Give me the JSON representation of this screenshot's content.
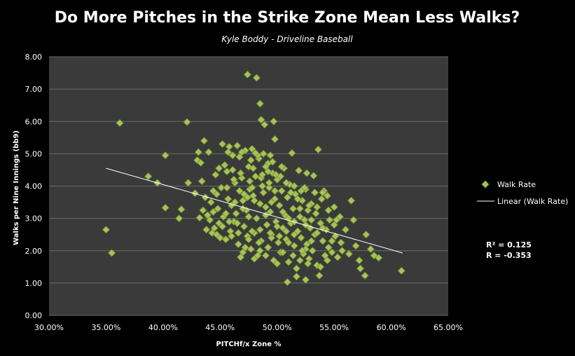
{
  "chart_data": {
    "type": "scatter",
    "title": "Do More Pitches in the Strike Zone Mean Less Walks?",
    "subtitle": "Kyle Boddy - Driveline Baseball",
    "xlabel": "PITCHf/x Zone %",
    "ylabel": "Walks per Nine Innings (bb9)",
    "xlim": [
      0.3,
      0.65
    ],
    "ylim": [
      0,
      8
    ],
    "x_ticks": [
      "30.00%",
      "35.00%",
      "40.00%",
      "45.00%",
      "50.00%",
      "55.00%",
      "60.00%",
      "65.00%"
    ],
    "y_ticks": [
      "0.00",
      "1.00",
      "2.00",
      "3.00",
      "4.00",
      "5.00",
      "6.00",
      "7.00",
      "8.00"
    ],
    "grid": "horizontal",
    "legend_position": "right",
    "colors": {
      "background": "#000000",
      "plot_area": "#3a3a3a",
      "gridline": "#6a6a6a",
      "point": "#a6c35a",
      "trendline": "#ffffff"
    },
    "series": [
      {
        "name": "Walk Rate",
        "marker": "diamond",
        "points": [
          [
            0.35,
            2.65
          ],
          [
            0.355,
            1.93
          ],
          [
            0.362,
            5.95
          ],
          [
            0.387,
            4.3
          ],
          [
            0.395,
            4.1
          ],
          [
            0.402,
            4.95
          ],
          [
            0.402,
            3.33
          ],
          [
            0.414,
            3.0
          ],
          [
            0.416,
            3.28
          ],
          [
            0.421,
            5.98
          ],
          [
            0.422,
            4.1
          ],
          [
            0.428,
            3.78
          ],
          [
            0.43,
            4.8
          ],
          [
            0.431,
            5.05
          ],
          [
            0.432,
            3.02
          ],
          [
            0.433,
            4.72
          ],
          [
            0.434,
            4.15
          ],
          [
            0.435,
            3.25
          ],
          [
            0.436,
            5.4
          ],
          [
            0.437,
            3.65
          ],
          [
            0.438,
            2.65
          ],
          [
            0.439,
            3.1
          ],
          [
            0.44,
            5.05
          ],
          [
            0.441,
            2.95
          ],
          [
            0.442,
            3.5
          ],
          [
            0.443,
            2.55
          ],
          [
            0.444,
            3.2
          ],
          [
            0.445,
            2.7
          ],
          [
            0.446,
            4.35
          ],
          [
            0.447,
            3.75
          ],
          [
            0.448,
            3.3
          ],
          [
            0.449,
            2.85
          ],
          [
            0.45,
            2.4
          ],
          [
            0.451,
            3.95
          ],
          [
            0.452,
            5.3
          ],
          [
            0.453,
            3.05
          ],
          [
            0.454,
            4.65
          ],
          [
            0.455,
            2.35
          ],
          [
            0.456,
            4.45
          ],
          [
            0.457,
            3.6
          ],
          [
            0.458,
            5.22
          ],
          [
            0.459,
            2.6
          ],
          [
            0.46,
            3.4
          ],
          [
            0.461,
            4.5
          ],
          [
            0.462,
            2.9
          ],
          [
            0.463,
            4.1
          ],
          [
            0.464,
            3.15
          ],
          [
            0.465,
            5.25
          ],
          [
            0.466,
            2.2
          ],
          [
            0.467,
            3.85
          ],
          [
            0.468,
            1.8
          ],
          [
            0.469,
            4.25
          ],
          [
            0.47,
            3.55
          ],
          [
            0.471,
            2.75
          ],
          [
            0.472,
            5.1
          ],
          [
            0.473,
            3.25
          ],
          [
            0.474,
            2.45
          ],
          [
            0.475,
            4.6
          ],
          [
            0.476,
            3.9
          ],
          [
            0.477,
            2.05
          ],
          [
            0.478,
            5.15
          ],
          [
            0.479,
            3.7
          ],
          [
            0.48,
            2.55
          ],
          [
            0.481,
            4.3
          ],
          [
            0.482,
            3.0
          ],
          [
            0.483,
            1.85
          ],
          [
            0.484,
            4.85
          ],
          [
            0.485,
            3.45
          ],
          [
            0.486,
            2.3
          ],
          [
            0.487,
            4.0
          ],
          [
            0.474,
            7.45
          ],
          [
            0.482,
            7.35
          ],
          [
            0.485,
            6.55
          ],
          [
            0.486,
            6.05
          ],
          [
            0.497,
            6.0
          ],
          [
            0.498,
            5.45
          ],
          [
            0.489,
            5.9
          ],
          [
            0.488,
            5.0
          ],
          [
            0.494,
            4.95
          ],
          [
            0.492,
            4.7
          ],
          [
            0.49,
            3.35
          ],
          [
            0.491,
            2.8
          ],
          [
            0.492,
            2.1
          ],
          [
            0.493,
            3.95
          ],
          [
            0.494,
            3.2
          ],
          [
            0.495,
            2.5
          ],
          [
            0.496,
            4.4
          ],
          [
            0.497,
            1.7
          ],
          [
            0.498,
            3.6
          ],
          [
            0.499,
            2.9
          ],
          [
            0.5,
            4.2
          ],
          [
            0.501,
            2.25
          ],
          [
            0.502,
            3.4
          ],
          [
            0.503,
            1.95
          ],
          [
            0.504,
            3.85
          ],
          [
            0.505,
            2.7
          ],
          [
            0.506,
            4.55
          ],
          [
            0.507,
            3.1
          ],
          [
            0.508,
            2.35
          ],
          [
            0.509,
            3.65
          ],
          [
            0.51,
            1.65
          ],
          [
            0.511,
            4.05
          ],
          [
            0.512,
            2.85
          ],
          [
            0.513,
            5.02
          ],
          [
            0.514,
            3.3
          ],
          [
            0.515,
            2.15
          ],
          [
            0.516,
            3.75
          ],
          [
            0.517,
            1.45
          ],
          [
            0.518,
            2.6
          ],
          [
            0.519,
            4.48
          ],
          [
            0.52,
            3.05
          ],
          [
            0.521,
            2.4
          ],
          [
            0.522,
            3.55
          ],
          [
            0.523,
            1.9
          ],
          [
            0.524,
            2.95
          ],
          [
            0.525,
            3.9
          ],
          [
            0.526,
            2.2
          ],
          [
            0.527,
            3.25
          ],
          [
            0.528,
            1.75
          ],
          [
            0.529,
            2.7
          ],
          [
            0.53,
            3.45
          ],
          [
            0.531,
            2.0
          ],
          [
            0.532,
            4.32
          ],
          [
            0.533,
            2.5
          ],
          [
            0.534,
            3.15
          ],
          [
            0.535,
            1.55
          ],
          [
            0.536,
            5.13
          ],
          [
            0.537,
            1.23
          ],
          [
            0.538,
            2.85
          ],
          [
            0.539,
            3.6
          ],
          [
            0.54,
            2.3
          ],
          [
            0.541,
            3.85
          ],
          [
            0.542,
            1.85
          ],
          [
            0.543,
            2.65
          ],
          [
            0.544,
            3.7
          ],
          [
            0.545,
            2.1
          ],
          [
            0.546,
            2.95
          ],
          [
            0.548,
            1.95
          ],
          [
            0.55,
            3.35
          ],
          [
            0.551,
            2.45
          ],
          [
            0.553,
            1.8
          ],
          [
            0.555,
            3.05
          ],
          [
            0.557,
            2.0
          ],
          [
            0.56,
            2.65
          ],
          [
            0.563,
            1.9
          ],
          [
            0.565,
            3.55
          ],
          [
            0.567,
            2.95
          ],
          [
            0.569,
            2.15
          ],
          [
            0.572,
            1.7
          ],
          [
            0.573,
            1.45
          ],
          [
            0.577,
            1.23
          ],
          [
            0.578,
            2.5
          ],
          [
            0.582,
            2.05
          ],
          [
            0.585,
            1.85
          ],
          [
            0.589,
            1.78
          ],
          [
            0.609,
            1.38
          ],
          [
            0.509,
            1.03
          ],
          [
            0.517,
            1.2
          ],
          [
            0.525,
            1.1
          ],
          [
            0.496,
            4.75
          ],
          [
            0.467,
            4.9
          ],
          [
            0.476,
            4.15
          ],
          [
            0.479,
            4.55
          ],
          [
            0.483,
            4.95
          ],
          [
            0.488,
            3.8
          ],
          [
            0.49,
            4.6
          ],
          [
            0.471,
            3.75
          ],
          [
            0.463,
            3.5
          ],
          [
            0.458,
            2.9
          ],
          [
            0.452,
            2.75
          ],
          [
            0.447,
            2.5
          ],
          [
            0.455,
            3.15
          ],
          [
            0.46,
            2.45
          ],
          [
            0.465,
            2.85
          ],
          [
            0.47,
            1.95
          ],
          [
            0.475,
            2.35
          ],
          [
            0.48,
            1.75
          ],
          [
            0.485,
            2.0
          ],
          [
            0.49,
            1.85
          ],
          [
            0.495,
            2.4
          ],
          [
            0.5,
            1.6
          ],
          [
            0.505,
            1.95
          ],
          [
            0.51,
            2.25
          ],
          [
            0.515,
            2.5
          ],
          [
            0.52,
            1.7
          ],
          [
            0.525,
            2.05
          ],
          [
            0.53,
            2.3
          ],
          [
            0.535,
            2.55
          ],
          [
            0.54,
            2.7
          ],
          [
            0.47,
            3.3
          ],
          [
            0.475,
            3.05
          ],
          [
            0.48,
            3.55
          ],
          [
            0.485,
            2.65
          ],
          [
            0.49,
            3.1
          ],
          [
            0.495,
            3.5
          ],
          [
            0.5,
            2.75
          ],
          [
            0.505,
            3.2
          ],
          [
            0.51,
            3.0
          ],
          [
            0.515,
            2.9
          ],
          [
            0.52,
            3.3
          ],
          [
            0.525,
            2.8
          ],
          [
            0.53,
            2.95
          ],
          [
            0.535,
            3.35
          ],
          [
            0.545,
            3.25
          ],
          [
            0.55,
            2.8
          ],
          [
            0.456,
            3.95
          ],
          [
            0.462,
            4.2
          ],
          [
            0.468,
            4.4
          ],
          [
            0.474,
            3.65
          ],
          [
            0.478,
            3.95
          ],
          [
            0.486,
            4.25
          ],
          [
            0.492,
            4.45
          ],
          [
            0.498,
            3.85
          ],
          [
            0.504,
            4.6
          ],
          [
            0.508,
            4.1
          ],
          [
            0.512,
            3.8
          ],
          [
            0.518,
            3.6
          ],
          [
            0.524,
            3.95
          ],
          [
            0.528,
            3.4
          ],
          [
            0.533,
            3.8
          ],
          [
            0.466,
            2.55
          ],
          [
            0.472,
            2.1
          ],
          [
            0.478,
            2.6
          ],
          [
            0.484,
            2.25
          ],
          [
            0.494,
            2.55
          ],
          [
            0.502,
            2.45
          ],
          [
            0.508,
            2.6
          ],
          [
            0.514,
            1.85
          ],
          [
            0.522,
            2.0
          ],
          [
            0.527,
            1.6
          ],
          [
            0.538,
            1.5
          ],
          [
            0.544,
            1.7
          ],
          [
            0.548,
            2.3
          ],
          [
            0.552,
            2.95
          ],
          [
            0.556,
            2.25
          ],
          [
            0.444,
            3.85
          ],
          [
            0.449,
            4.55
          ],
          [
            0.457,
            5.05
          ],
          [
            0.461,
            4.95
          ],
          [
            0.469,
            5.05
          ],
          [
            0.477,
            4.8
          ],
          [
            0.481,
            5.02
          ],
          [
            0.487,
            4.35
          ],
          [
            0.493,
            4.1
          ],
          [
            0.499,
            4.35
          ],
          [
            0.503,
            4.3
          ],
          [
            0.515,
            4.0
          ],
          [
            0.521,
            3.85
          ],
          [
            0.526,
            4.4
          ],
          [
            0.54,
            3.8
          ]
        ]
      },
      {
        "name": "Linear (Walk Rate)",
        "line": [
          [
            0.35,
            4.55
          ],
          [
            0.61,
            1.93
          ]
        ]
      }
    ],
    "annotations": [
      "R² = 0.125",
      "R = -0.353"
    ]
  }
}
